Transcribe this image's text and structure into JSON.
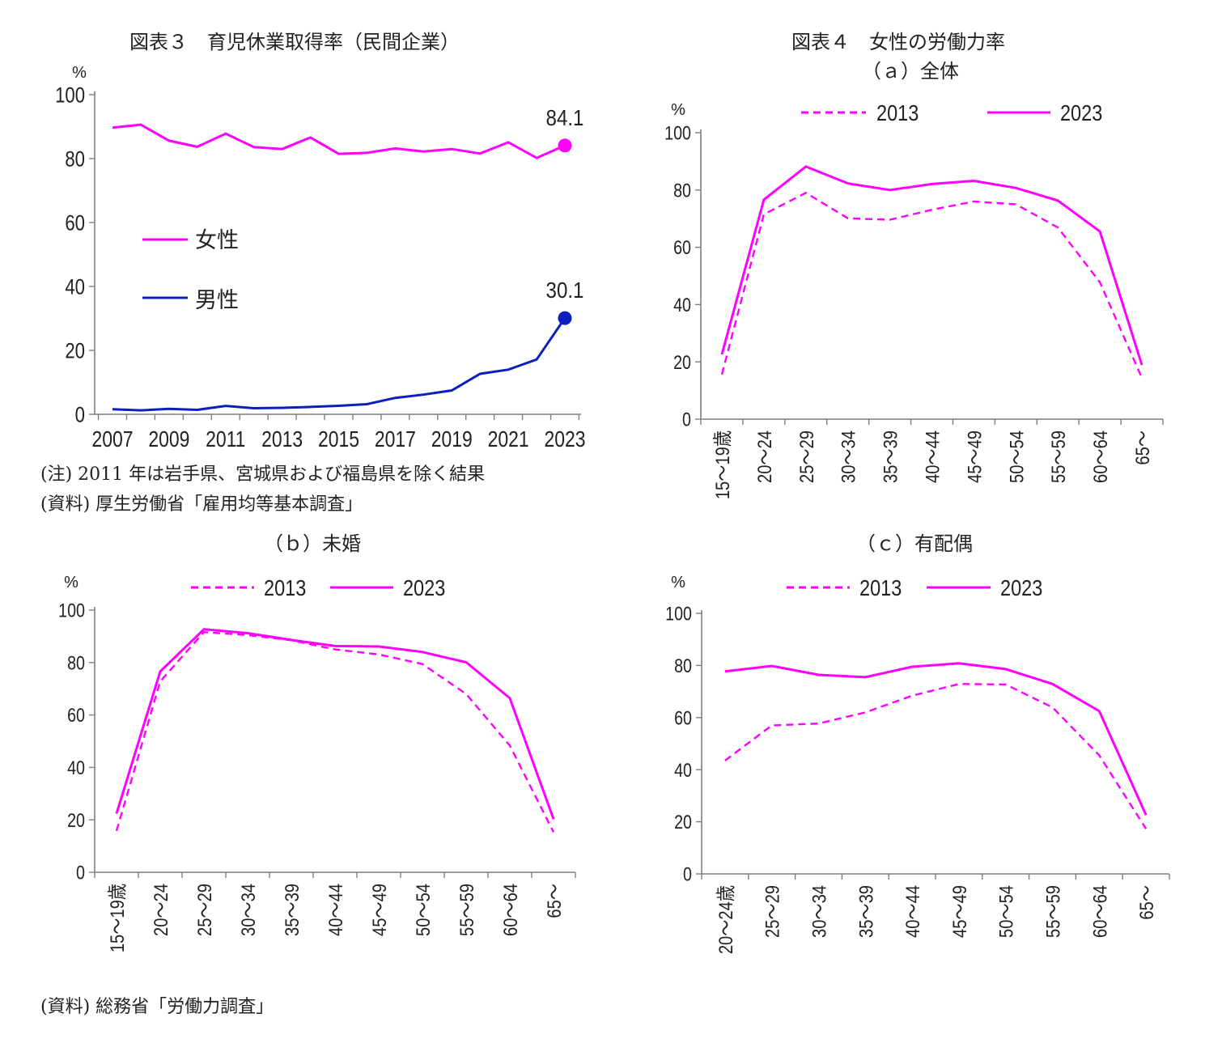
{
  "fig3": {
    "title": "図表３　育児休業取得率（民間企業）",
    "note": "(注) 2011 年は岩手県、宮城県および福島県を除く結果",
    "source": "(資料) 厚生労働省「雇用均等基本調査」"
  },
  "fig4": {
    "title": "図表４　女性の労働力率",
    "source": "(資料) 総務省「労働力調査」"
  },
  "colors": {
    "pink": "#ff00ff",
    "navy": "#0b1fbf",
    "axis": "#7f7f7f"
  },
  "chart_data": [
    {
      "id": "fig3",
      "type": "line",
      "title": "図表３　育児休業取得率（民間企業）",
      "ylabel": "%",
      "ylim": [
        0,
        100
      ],
      "yticks": [
        0,
        20,
        40,
        60,
        80,
        100
      ],
      "x": [
        2007,
        2008,
        2009,
        2010,
        2011,
        2012,
        2013,
        2014,
        2015,
        2016,
        2017,
        2018,
        2019,
        2020,
        2021,
        2022,
        2023
      ],
      "xtick_labels": [
        "2007",
        "2009",
        "2011",
        "2013",
        "2015",
        "2017",
        "2019",
        "2021",
        "2023"
      ],
      "legend_position": "left",
      "series": [
        {
          "name": "女性",
          "style": "solid",
          "color": "#ff00ff",
          "values": [
            89.7,
            90.6,
            85.6,
            83.7,
            87.8,
            83.6,
            83.0,
            86.6,
            81.5,
            81.8,
            83.2,
            82.2,
            83.0,
            81.6,
            85.1,
            80.2,
            84.1
          ],
          "end_label": "84.1"
        },
        {
          "name": "男性",
          "style": "solid",
          "color": "#0b1fbf",
          "values": [
            1.56,
            1.23,
            1.72,
            1.38,
            2.63,
            1.89,
            2.03,
            2.3,
            2.65,
            3.16,
            5.14,
            6.16,
            7.48,
            12.65,
            13.97,
            17.13,
            30.1
          ],
          "end_label": "30.1"
        }
      ]
    },
    {
      "id": "fig4a",
      "type": "line",
      "subtitle": "（ａ）全体",
      "ylabel": "%",
      "ylim": [
        0,
        100
      ],
      "yticks": [
        0,
        20,
        40,
        60,
        80,
        100
      ],
      "categories": [
        "15～19歳",
        "20～24",
        "25～29",
        "30～34",
        "35～39",
        "40～44",
        "45～49",
        "50～54",
        "55～59",
        "60～64",
        "65～"
      ],
      "legend_position": "top",
      "series": [
        {
          "name": "2013",
          "style": "dashed",
          "values": [
            15.6,
            71.5,
            79.0,
            70.1,
            69.6,
            73.1,
            76.0,
            75.0,
            66.9,
            47.8,
            14.4
          ]
        },
        {
          "name": "2023",
          "style": "solid",
          "values": [
            22.6,
            76.6,
            88.2,
            82.3,
            80.0,
            82.1,
            83.2,
            80.7,
            76.3,
            65.5,
            18.9
          ]
        }
      ]
    },
    {
      "id": "fig4b",
      "type": "line",
      "subtitle": "（ｂ）未婚",
      "ylabel": "%",
      "ylim": [
        0,
        100
      ],
      "yticks": [
        0,
        20,
        40,
        60,
        80,
        100
      ],
      "categories": [
        "15～19歳",
        "20～24",
        "25～29",
        "30～34",
        "35～39",
        "40～44",
        "45～49",
        "50～54",
        "55～59",
        "60～64",
        "65～"
      ],
      "legend_position": "top",
      "series": [
        {
          "name": "2013",
          "style": "dashed",
          "values": [
            15.8,
            72.8,
            91.6,
            90.5,
            88.5,
            85.0,
            83.1,
            79.4,
            68.0,
            48.3,
            15.3
          ]
        },
        {
          "name": "2023",
          "style": "solid",
          "values": [
            22.4,
            76.6,
            92.7,
            91.2,
            88.6,
            86.3,
            86.1,
            84.0,
            80.1,
            66.4,
            20.3
          ]
        }
      ]
    },
    {
      "id": "fig4c",
      "type": "line",
      "subtitle": "（ｃ）有配偶",
      "ylabel": "%",
      "ylim": [
        0,
        100
      ],
      "yticks": [
        0,
        20,
        40,
        60,
        80,
        100
      ],
      "categories": [
        "20～24歳",
        "25～29",
        "30～34",
        "35～39",
        "40～44",
        "45～49",
        "50～54",
        "55～59",
        "60～64",
        "65～"
      ],
      "legend_position": "top",
      "series": [
        {
          "name": "2013",
          "style": "dashed",
          "values": [
            43.5,
            57.0,
            57.7,
            62.0,
            68.4,
            72.9,
            72.7,
            63.9,
            45.5,
            17.3
          ]
        },
        {
          "name": "2023",
          "style": "solid",
          "values": [
            77.7,
            79.8,
            76.4,
            75.5,
            79.5,
            80.8,
            78.6,
            72.9,
            62.5,
            22.6
          ]
        }
      ]
    }
  ]
}
